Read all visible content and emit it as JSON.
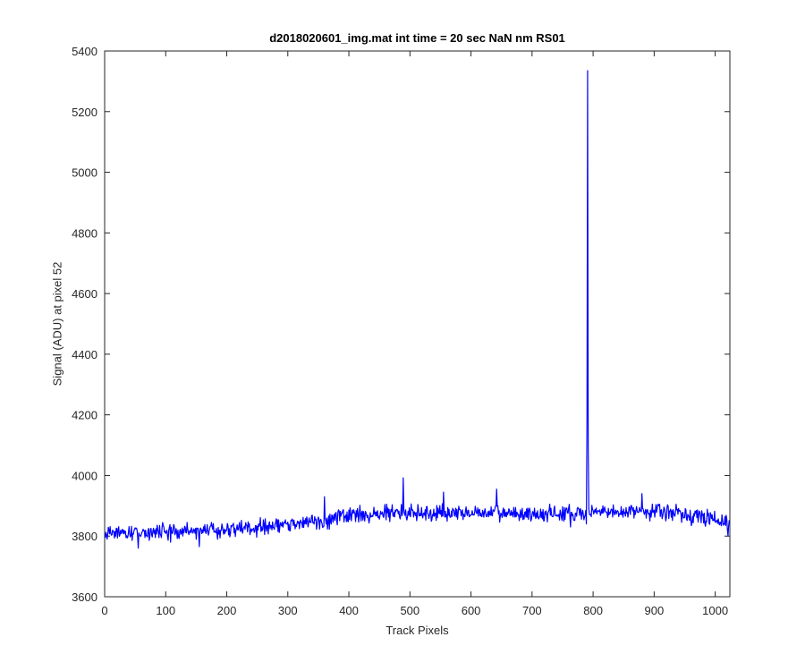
{
  "chart_data": {
    "type": "line",
    "title": "d2018020601_img.mat int time = 20 sec  NaN nm RS01",
    "xlabel": "Track Pixels",
    "ylabel": "Signal (ADU) at pixel 52",
    "xlim": [
      0,
      1024
    ],
    "ylim": [
      3600,
      5400
    ],
    "xticks": [
      0,
      100,
      200,
      300,
      400,
      500,
      600,
      700,
      800,
      900,
      1000
    ],
    "yticks": [
      3600,
      3800,
      4000,
      4200,
      4400,
      4600,
      4800,
      5000,
      5200,
      5400
    ],
    "grid": false,
    "series": [
      {
        "color": "#0000ff",
        "baseline_knots": [
          [
            0,
            3810
          ],
          [
            100,
            3815
          ],
          [
            200,
            3822
          ],
          [
            300,
            3835
          ],
          [
            400,
            3868
          ],
          [
            500,
            3878
          ],
          [
            600,
            3876
          ],
          [
            700,
            3872
          ],
          [
            800,
            3876
          ],
          [
            900,
            3885
          ],
          [
            1000,
            3858
          ],
          [
            1024,
            3840
          ]
        ],
        "noise_amplitude": 22,
        "spikes": [
          [
            4,
            3790
          ],
          [
            55,
            3760
          ],
          [
            155,
            3765
          ],
          [
            360,
            3930
          ],
          [
            489,
            3992
          ],
          [
            555,
            3945
          ],
          [
            642,
            3955
          ],
          [
            763,
            3830
          ],
          [
            789,
            3840
          ],
          [
            790,
            4200
          ],
          [
            791,
            5335
          ],
          [
            792,
            4100
          ],
          [
            880,
            3940
          ],
          [
            1021,
            3800
          ]
        ]
      }
    ]
  }
}
